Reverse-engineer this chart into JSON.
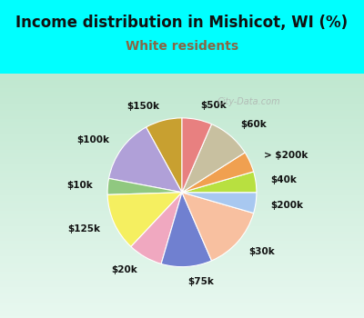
{
  "title": "Income distribution in Mishicot, WI (%)",
  "subtitle": "White residents",
  "bg_color": "#00FFFF",
  "chart_bg_top": "#f0faf5",
  "chart_bg_bottom": "#c8ead8",
  "labels": [
    "$150k",
    "$100k",
    "$10k",
    "$125k",
    "$20k",
    "$75k",
    "$30k",
    "$200k",
    "$40k",
    "> $200k",
    "$60k",
    "$50k"
  ],
  "sizes": [
    8.0,
    14.0,
    3.5,
    12.5,
    7.5,
    11.0,
    14.0,
    4.5,
    4.5,
    4.5,
    9.5,
    6.5
  ],
  "colors": [
    "#c8a030",
    "#b0a0d8",
    "#90c880",
    "#f5ef60",
    "#f0a8c0",
    "#7080d0",
    "#f8c0a0",
    "#a8c8f0",
    "#b8e040",
    "#f0a050",
    "#c8c0a0",
    "#e88080"
  ],
  "startangle": 90,
  "label_fontsize": 7.5,
  "title_fontsize": 12,
  "subtitle_fontsize": 10,
  "subtitle_color": "#886644",
  "watermark": "City-Data.com"
}
